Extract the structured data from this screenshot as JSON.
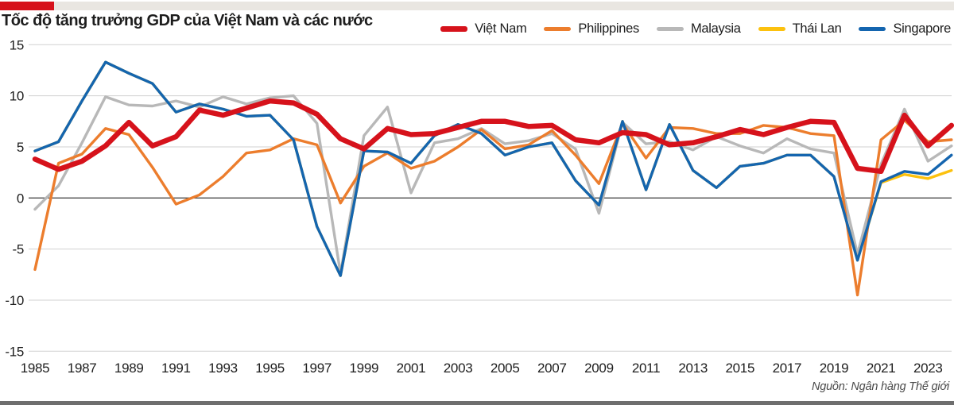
{
  "header": {
    "title": "Tốc độ tăng trưởng GDP của Việt Nam và các nước"
  },
  "footer": {
    "source": "Nguồn: Ngân hàng Thế giới"
  },
  "style": {
    "accent_red": "#d6121b",
    "top_bar_color": "#e9e6e1",
    "bottom_bar_color": "#6e6e6e",
    "gridline_color": "#d0d0d0",
    "zero_line_color": "#4b4b4b"
  },
  "chart_data": {
    "type": "line",
    "title": "Tốc độ tăng trưởng GDP của Việt Nam và các nước",
    "xlabel": "",
    "ylabel": "",
    "ylim": [
      -15,
      15
    ],
    "y_ticks": [
      15,
      10,
      5,
      0,
      -5,
      -10,
      -15
    ],
    "grid": true,
    "legend_position": "top-right",
    "x": [
      1985,
      1986,
      1987,
      1988,
      1989,
      1990,
      1991,
      1992,
      1993,
      1994,
      1995,
      1996,
      1997,
      1998,
      1999,
      2000,
      2001,
      2002,
      2003,
      2004,
      2005,
      2006,
      2007,
      2008,
      2009,
      2010,
      2011,
      2012,
      2013,
      2014,
      2015,
      2016,
      2017,
      2018,
      2019,
      2020,
      2021,
      2022,
      2023,
      2024
    ],
    "x_tick_labels": [
      "1985",
      "1987",
      "1989",
      "1991",
      "1993",
      "1995",
      "1997",
      "1999",
      "2001",
      "2003",
      "2005",
      "2007",
      "2009",
      "2011",
      "2013",
      "2015",
      "2017",
      "2019",
      "2021",
      "2023"
    ],
    "series": [
      {
        "name": "Việt Nam",
        "color": "#d6121b",
        "line_width": 6.5,
        "values": [
          3.8,
          2.8,
          3.6,
          5.1,
          7.4,
          5.1,
          6.0,
          8.6,
          8.1,
          8.8,
          9.5,
          9.3,
          8.2,
          5.8,
          4.8,
          6.8,
          6.2,
          6.3,
          6.9,
          7.5,
          7.5,
          7.0,
          7.1,
          5.7,
          5.4,
          6.4,
          6.2,
          5.2,
          5.4,
          6.0,
          6.7,
          6.2,
          6.9,
          7.5,
          7.4,
          2.9,
          2.6,
          8.1,
          5.1,
          7.1
        ]
      },
      {
        "name": "Philippines",
        "color": "#ec7d2d",
        "line_width": 3.4,
        "values": [
          -7.0,
          3.4,
          4.3,
          6.8,
          6.2,
          3.0,
          -0.6,
          0.3,
          2.1,
          4.4,
          4.7,
          5.8,
          5.2,
          -0.5,
          3.1,
          4.4,
          2.9,
          3.6,
          5.0,
          6.7,
          4.8,
          5.2,
          6.6,
          4.2,
          1.4,
          7.3,
          3.9,
          6.9,
          6.8,
          6.3,
          6.3,
          7.1,
          6.9,
          6.3,
          6.1,
          -9.5,
          5.7,
          7.6,
          5.5,
          5.7
        ]
      },
      {
        "name": "Malaysia",
        "color": "#b8b8b8",
        "line_width": 3.4,
        "values": [
          -1.1,
          1.2,
          5.4,
          9.9,
          9.1,
          9.0,
          9.5,
          8.9,
          9.9,
          9.2,
          9.8,
          10.0,
          7.3,
          -7.4,
          6.1,
          8.9,
          0.5,
          5.4,
          5.8,
          6.8,
          5.3,
          5.6,
          6.3,
          4.8,
          -1.5,
          7.4,
          5.3,
          5.5,
          4.7,
          6.0,
          5.1,
          4.4,
          5.8,
          4.8,
          4.4,
          -5.5,
          3.3,
          8.7,
          3.6,
          5.1
        ]
      },
      {
        "name": "Thái Lan",
        "color": "#fcc10e",
        "line_width": 3.4,
        "values": [
          4.6,
          5.5,
          9.5,
          13.3,
          12.2,
          11.2,
          8.4,
          9.2,
          8.7,
          8.0,
          8.1,
          5.7,
          -2.8,
          -7.6,
          4.6,
          4.5,
          3.4,
          6.1,
          7.2,
          6.3,
          4.2,
          5.0,
          5.4,
          1.7,
          -0.7,
          7.5,
          0.8,
          7.2,
          2.7,
          1.0,
          3.1,
          3.4,
          4.2,
          4.2,
          2.1,
          -6.1,
          1.5,
          2.3,
          1.9,
          2.7
        ]
      },
      {
        "name": "Singapore",
        "color": "#1465af",
        "line_width": 3.4,
        "values": [
          4.6,
          5.5,
          9.5,
          13.3,
          12.2,
          11.2,
          8.4,
          9.2,
          8.7,
          8.0,
          8.1,
          5.7,
          -2.8,
          -7.6,
          4.6,
          4.5,
          3.4,
          6.1,
          7.2,
          6.3,
          4.2,
          5.0,
          5.4,
          1.7,
          -0.7,
          7.5,
          0.8,
          7.2,
          2.7,
          1.0,
          3.1,
          3.4,
          4.2,
          4.2,
          2.1,
          -6.1,
          1.6,
          2.6,
          2.3,
          4.2
        ]
      }
    ],
    "draw_order": [
      "Malaysia",
      "Thái Lan",
      "Philippines",
      "Singapore",
      "Việt Nam"
    ]
  }
}
